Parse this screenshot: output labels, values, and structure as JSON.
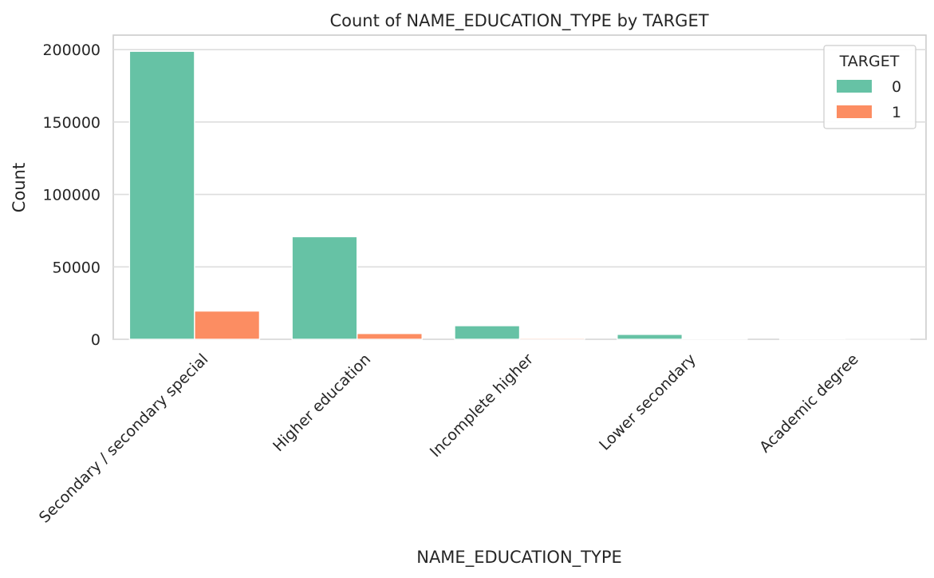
{
  "chart_data": {
    "type": "bar",
    "title": "Count of NAME_EDUCATION_TYPE by TARGET",
    "xlabel": "NAME_EDUCATION_TYPE",
    "ylabel": "Count",
    "categories": [
      "Secondary / secondary special",
      "Higher education",
      "Incomplete higher",
      "Lower secondary",
      "Academic degree"
    ],
    "series": [
      {
        "name": "0",
        "color": "#66c2a5",
        "values": [
          198867,
          70854,
          9405,
          3399,
          161
        ]
      },
      {
        "name": "1",
        "color": "#fc8d62",
        "values": [
          19524,
          4009,
          872,
          417,
          3
        ]
      }
    ],
    "ylim": [
      0,
      210000
    ],
    "yticks": [
      0,
      50000,
      100000,
      150000,
      200000
    ],
    "ytick_labels": [
      "0",
      "50000",
      "100000",
      "150000",
      "200000"
    ],
    "grid": "horizontal",
    "legend": {
      "title": "TARGET",
      "position": "top-right"
    }
  }
}
